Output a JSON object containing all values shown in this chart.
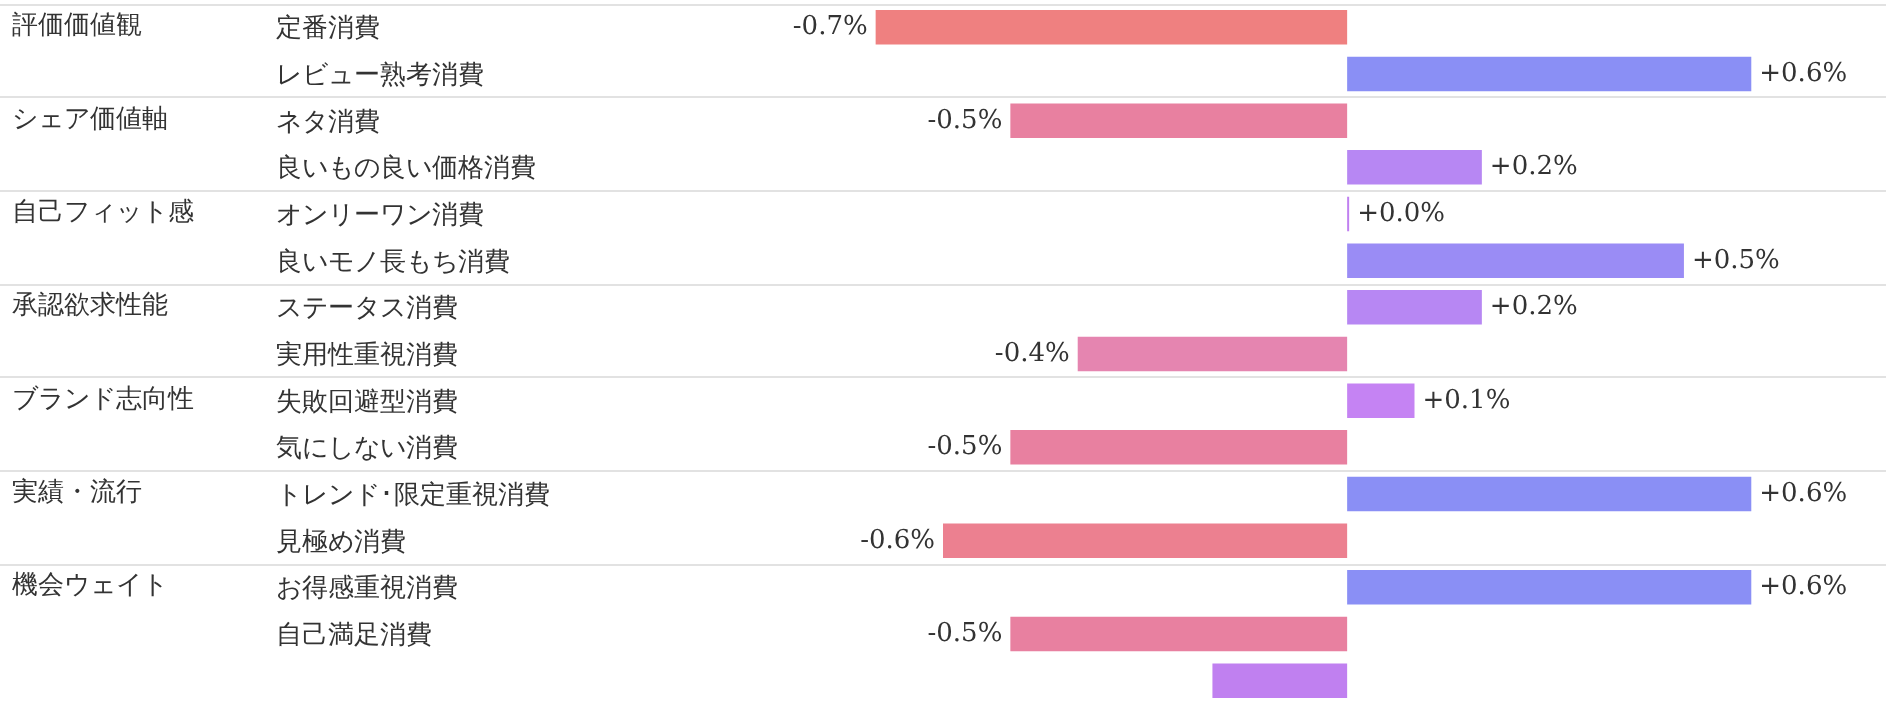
{
  "chart_data": {
    "type": "bar",
    "orientation": "horizontal",
    "categories": [
      "定番消費",
      "レビュー熟考消費",
      "ネタ消費",
      "良いもの良い価格消費",
      "オンリーワン消費",
      "良いモノ長もち消費",
      "ステータス消費",
      "実用性重視消費",
      "失敗回避型消費",
      "気にしない消費",
      "トレンド･限定重視消費",
      "見極め消費",
      "お得感重視消費",
      "自己満足消費",
      null
    ],
    "values": [
      -0.7,
      0.6,
      -0.5,
      0.2,
      0.0,
      0.5,
      0.2,
      -0.4,
      0.1,
      -0.5,
      0.6,
      -0.6,
      0.6,
      -0.5,
      -0.2
    ],
    "value_labels": [
      "-0.7%",
      "+0.6%",
      "-0.5%",
      "+0.2%",
      "+0.0%",
      "+0.5%",
      "+0.2%",
      "-0.4%",
      "+0.1%",
      "-0.5%",
      "+0.6%",
      "-0.6%",
      "+0.6%",
      "-0.5%",
      null
    ],
    "colors": [
      "#ef8080",
      "#8a8ff5",
      "#e880a0",
      "#b787f3",
      "#c080f0",
      "#9a8cf5",
      "#b787f3",
      "#e585b0",
      "#c583f3",
      "#e880a0",
      "#8a8ff5",
      "#ec8090",
      "#8a8ff5",
      "#e880a0",
      "#c080f0"
    ],
    "xlim": [
      -2,
      0.8
    ],
    "tick_labels": "y",
    "annotations": [
      "評価価値観",
      "シェア価値軸",
      "自己フィット感",
      "承認欲求性能",
      "ブランド志向性",
      "実績・流行",
      "機会ウェイト"
    ]
  }
}
